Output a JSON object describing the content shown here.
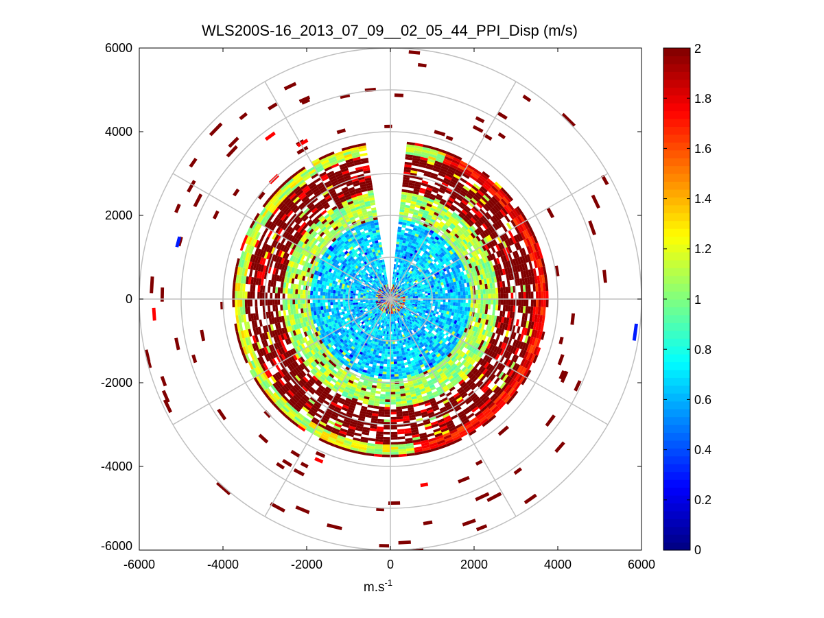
{
  "chart_data": {
    "type": "heatmap",
    "subtype": "polar-ppi",
    "title": "WLS200S-16_2013_07_09__02_05_44_PPI_Disp (m/s)",
    "xlabel_base": "m.s",
    "xlabel_sup": "-1",
    "ylabel": "",
    "xlim": [
      -6000,
      6000
    ],
    "ylim": [
      -6000,
      6000
    ],
    "x_ticks": [
      "-6000",
      "-4000",
      "-2000",
      "0",
      "2000",
      "4000",
      "6000"
    ],
    "y_ticks": [
      "6000",
      "4000",
      "2000",
      "0",
      "-2000",
      "-4000",
      "-6000"
    ],
    "grid": true,
    "range_rings": [
      1000,
      2000,
      3000,
      4000,
      5000,
      6000
    ],
    "azimuth_spokes_deg": [
      0,
      30,
      60,
      90,
      120,
      150,
      180,
      210,
      240,
      270,
      300,
      330
    ],
    "colorbar": {
      "min": 0,
      "max": 2,
      "ticks": [
        "0",
        "0.2",
        "0.4",
        "0.6",
        "0.8",
        "1",
        "1.2",
        "1.4",
        "1.6",
        "1.8",
        "2"
      ],
      "colormap": "jet"
    },
    "missing_sector_deg": [
      -10,
      5
    ],
    "value_bands": [
      {
        "r_min": 0,
        "r_max": 380,
        "value": 1.5,
        "description": "noisy mixed values near lidar"
      },
      {
        "r_min": 380,
        "r_max": 1900,
        "value": 0.65,
        "description": "predominantly cyan-blue"
      },
      {
        "r_min": 1900,
        "r_max": 2600,
        "value": 1.05,
        "description": "green-yellow transition"
      },
      {
        "r_min": 2600,
        "r_max": 3500,
        "value": 2.0,
        "description": "mostly saturated dark red"
      },
      {
        "r_min": 3500,
        "r_max": 3750,
        "value": 1.2,
        "description": "thin outer ring green-orange"
      },
      {
        "r_min": 3750,
        "r_max": 6000,
        "value": 2.0,
        "description": "sparse dark red returns"
      }
    ]
  }
}
